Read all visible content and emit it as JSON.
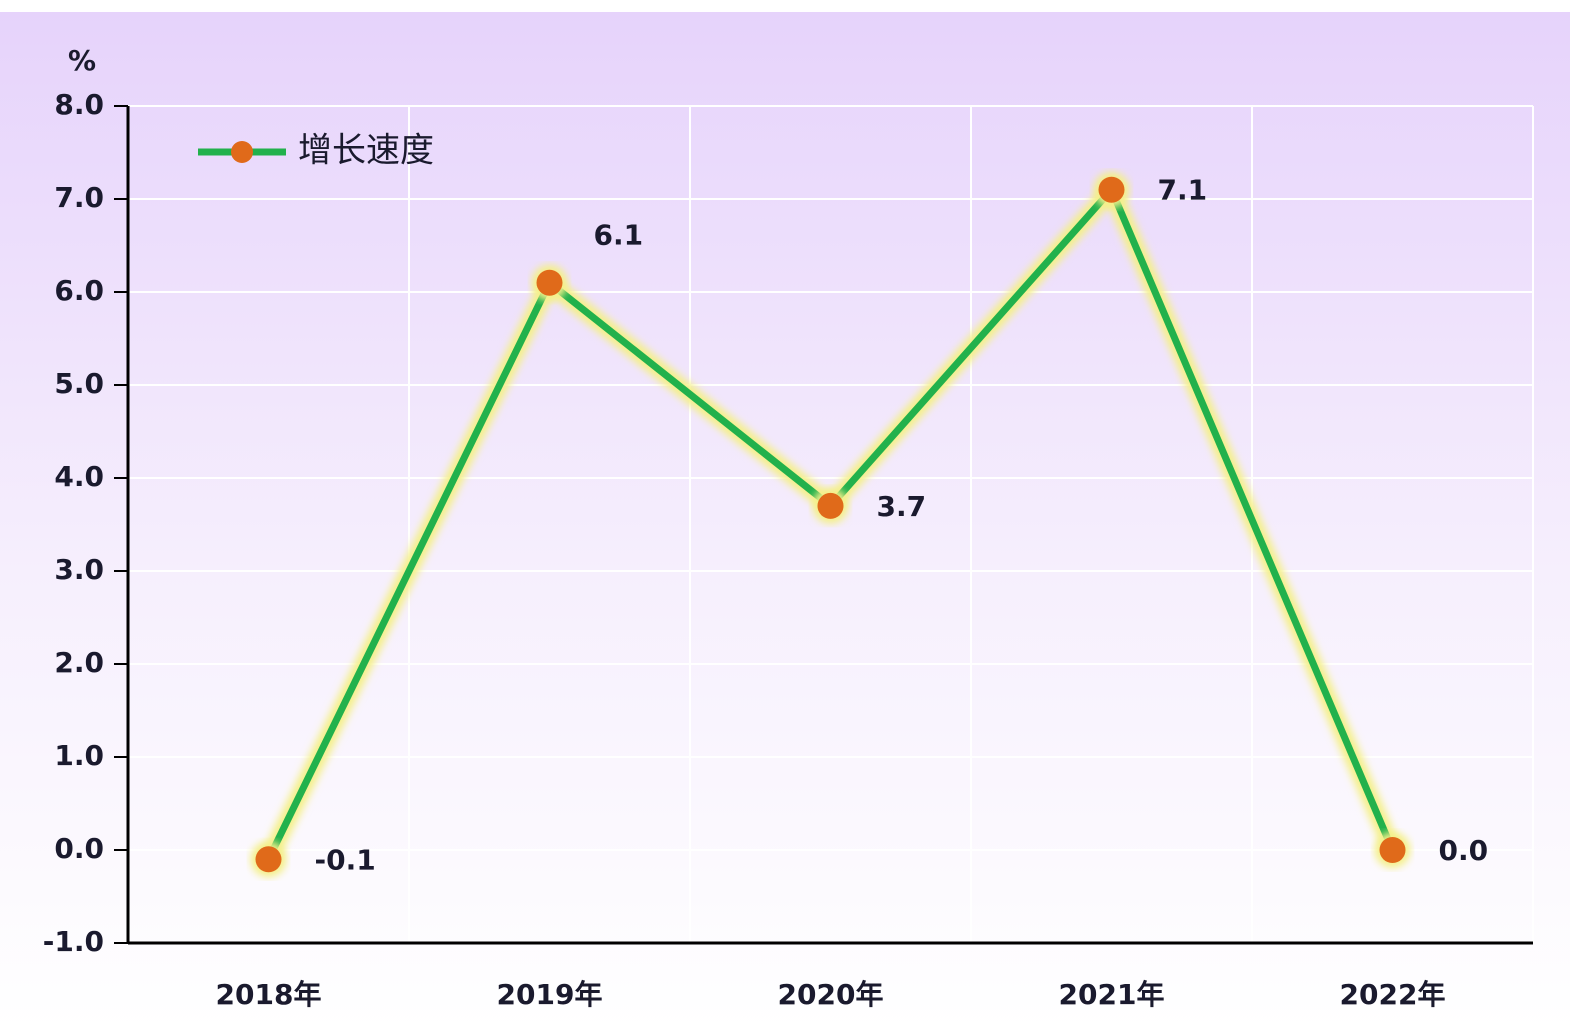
{
  "chart_data": {
    "type": "line",
    "y_label": "%",
    "categories": [
      "2018年",
      "2019年",
      "2020年",
      "2021年",
      "2022年"
    ],
    "series": [
      {
        "name": "增长速度",
        "color": "#22b14c",
        "marker_color": "#e06a1a",
        "values": [
          -0.1,
          6.1,
          3.7,
          7.1,
          0
        ],
        "value_labels": [
          "-0.1",
          "6.1",
          "3.7",
          "7.1",
          "0.0"
        ]
      }
    ],
    "ylim": [
      -1,
      8
    ],
    "yticks": [
      {
        "value": -1,
        "label": "-1.0"
      },
      {
        "value": 0,
        "label": "0.0"
      },
      {
        "value": 1,
        "label": "1.0"
      },
      {
        "value": 2,
        "label": "2.0"
      },
      {
        "value": 3,
        "label": "3.0"
      },
      {
        "value": 4,
        "label": "4.0"
      },
      {
        "value": 5,
        "label": "5.0"
      },
      {
        "value": 6,
        "label": "6.0"
      },
      {
        "value": 7,
        "label": "7.0"
      },
      {
        "value": 8,
        "label": "8.0"
      }
    ],
    "grid": true,
    "legend": "upper left"
  }
}
